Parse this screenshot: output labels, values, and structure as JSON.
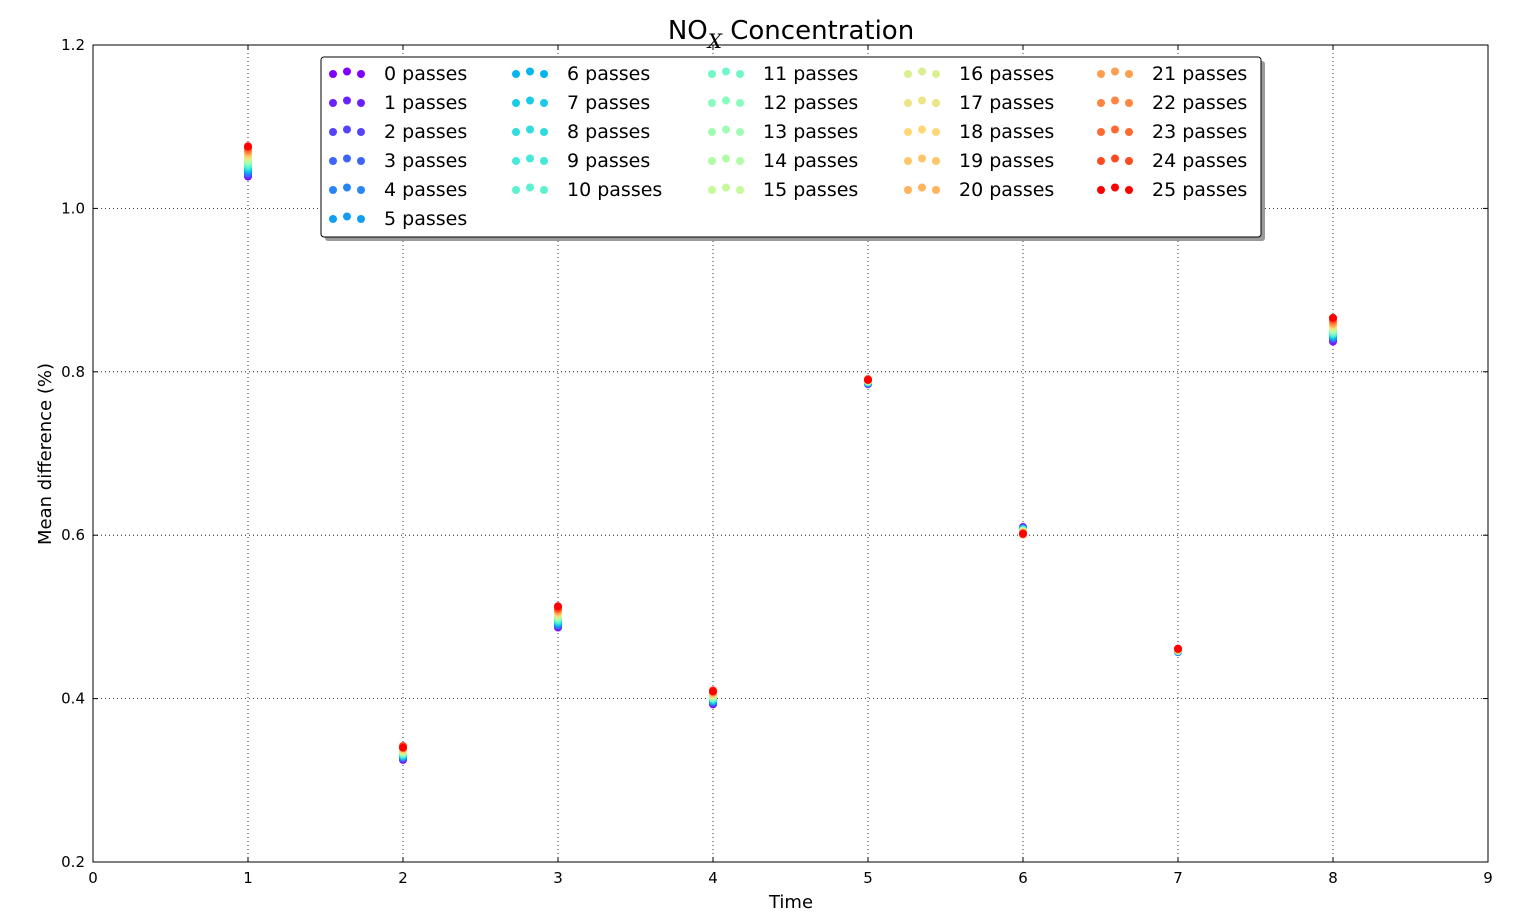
{
  "chart_data": {
    "type": "scatter",
    "title": "NO",
    "title_subscript": "X",
    "title_suffix": " Concentration",
    "xlabel": "Time",
    "ylabel": "Mean difference (%)",
    "xlim": [
      0,
      9
    ],
    "ylim": [
      0.2,
      1.2
    ],
    "xticks": [
      0,
      1,
      2,
      3,
      4,
      5,
      6,
      7,
      8,
      9
    ],
    "yticks": [
      0.2,
      0.4,
      0.6,
      0.8,
      1.0,
      1.2
    ],
    "xtick_labels": [
      "0",
      "1",
      "2",
      "3",
      "4",
      "5",
      "6",
      "7",
      "8",
      "9"
    ],
    "ytick_labels": [
      "0.2",
      "0.4",
      "0.6",
      "0.8",
      "1.0",
      "1.2"
    ],
    "grid": true,
    "legend_position": "top-center",
    "legend_columns": 5,
    "x": [
      1,
      2,
      3,
      4,
      5,
      6,
      7,
      8
    ],
    "series": [
      {
        "name": "0 passes",
        "color": "#8000ff",
        "values": [
          1.039,
          0.325,
          0.487,
          0.393,
          0.785,
          0.61,
          0.457,
          0.837
        ]
      },
      {
        "name": "1 passes",
        "color": "#6a23fe",
        "values": [
          1.04,
          0.326,
          0.488,
          0.394,
          0.785,
          0.609,
          0.457,
          0.838
        ]
      },
      {
        "name": "2 passes",
        "color": "#5444fd",
        "values": [
          1.042,
          0.327,
          0.489,
          0.395,
          0.786,
          0.609,
          0.457,
          0.84
        ]
      },
      {
        "name": "3 passes",
        "color": "#3e65fb",
        "values": [
          1.043,
          0.328,
          0.49,
          0.396,
          0.786,
          0.608,
          0.457,
          0.841
        ]
      },
      {
        "name": "4 passes",
        "color": "#2884f7",
        "values": [
          1.045,
          0.328,
          0.491,
          0.396,
          0.786,
          0.608,
          0.457,
          0.842
        ]
      },
      {
        "name": "5 passes",
        "color": "#129ff2",
        "values": [
          1.046,
          0.329,
          0.492,
          0.397,
          0.787,
          0.608,
          0.458,
          0.843
        ]
      },
      {
        "name": "6 passes",
        "color": "#04b6ed",
        "values": [
          1.048,
          0.33,
          0.493,
          0.398,
          0.787,
          0.607,
          0.458,
          0.844
        ]
      },
      {
        "name": "7 passes",
        "color": "#1acbe6",
        "values": [
          1.049,
          0.33,
          0.494,
          0.398,
          0.787,
          0.607,
          0.458,
          0.845
        ]
      },
      {
        "name": "8 passes",
        "color": "#30dcdf",
        "values": [
          1.051,
          0.331,
          0.495,
          0.399,
          0.787,
          0.607,
          0.458,
          0.846
        ]
      },
      {
        "name": "9 passes",
        "color": "#46e8d8",
        "values": [
          1.052,
          0.332,
          0.496,
          0.4,
          0.788,
          0.606,
          0.458,
          0.847
        ]
      },
      {
        "name": "10 passes",
        "color": "#5cf2cf",
        "values": [
          1.054,
          0.332,
          0.497,
          0.4,
          0.788,
          0.606,
          0.458,
          0.848
        ]
      },
      {
        "name": "11 passes",
        "color": "#72f8c6",
        "values": [
          1.055,
          0.333,
          0.498,
          0.401,
          0.788,
          0.606,
          0.459,
          0.849
        ]
      },
      {
        "name": "12 passes",
        "color": "#88fcbc",
        "values": [
          1.057,
          0.334,
          0.499,
          0.402,
          0.788,
          0.605,
          0.459,
          0.85
        ]
      },
      {
        "name": "13 passes",
        "color": "#9efdb2",
        "values": [
          1.058,
          0.334,
          0.5,
          0.402,
          0.789,
          0.605,
          0.459,
          0.851
        ]
      },
      {
        "name": "14 passes",
        "color": "#b2fca7",
        "values": [
          1.06,
          0.335,
          0.501,
          0.403,
          0.789,
          0.605,
          0.459,
          0.853
        ]
      },
      {
        "name": "15 passes",
        "color": "#c6f89c",
        "values": [
          1.061,
          0.336,
          0.502,
          0.404,
          0.789,
          0.604,
          0.459,
          0.854
        ]
      },
      {
        "name": "16 passes",
        "color": "#daf090",
        "values": [
          1.063,
          0.336,
          0.503,
          0.404,
          0.789,
          0.604,
          0.459,
          0.855
        ]
      },
      {
        "name": "17 passes",
        "color": "#ece584",
        "values": [
          1.064,
          0.337,
          0.504,
          0.405,
          0.789,
          0.604,
          0.46,
          0.856
        ]
      },
      {
        "name": "18 passes",
        "color": "#ffd777",
        "values": [
          1.066,
          0.338,
          0.505,
          0.406,
          0.79,
          0.603,
          0.46,
          0.857
        ]
      },
      {
        "name": "19 passes",
        "color": "#ffc66a",
        "values": [
          1.067,
          0.338,
          0.506,
          0.406,
          0.79,
          0.603,
          0.46,
          0.858
        ]
      },
      {
        "name": "20 passes",
        "color": "#ffb35c",
        "values": [
          1.069,
          0.339,
          0.507,
          0.407,
          0.79,
          0.603,
          0.46,
          0.859
        ]
      },
      {
        "name": "21 passes",
        "color": "#ff9e4e",
        "values": [
          1.07,
          0.34,
          0.508,
          0.408,
          0.79,
          0.602,
          0.46,
          0.86
        ]
      },
      {
        "name": "22 passes",
        "color": "#ff8540",
        "values": [
          1.072,
          0.34,
          0.509,
          0.408,
          0.79,
          0.602,
          0.46,
          0.862
        ]
      },
      {
        "name": "23 passes",
        "color": "#ff6a31",
        "values": [
          1.073,
          0.341,
          0.51,
          0.409,
          0.791,
          0.602,
          0.461,
          0.863
        ]
      },
      {
        "name": "24 passes",
        "color": "#ff4b21",
        "values": [
          1.075,
          0.342,
          0.511,
          0.41,
          0.791,
          0.601,
          0.461,
          0.865
        ]
      },
      {
        "name": "25 passes",
        "color": "#ff0000",
        "values": [
          1.076,
          0.34,
          0.513,
          0.409,
          0.79,
          0.602,
          0.461,
          0.866
        ]
      }
    ]
  }
}
